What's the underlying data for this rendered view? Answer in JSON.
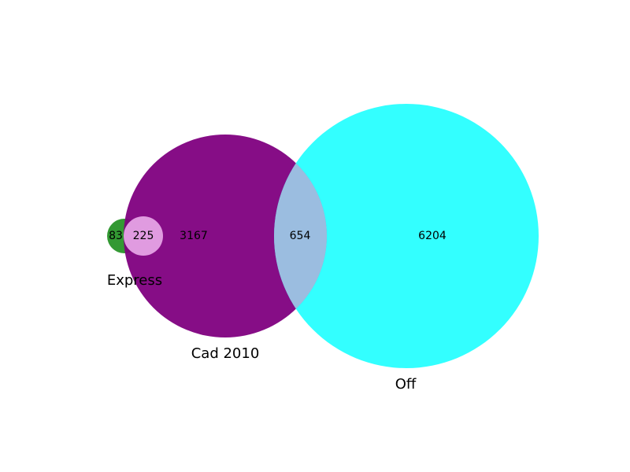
{
  "diagram": {
    "type": "venn",
    "sets": [
      {
        "id": "express",
        "label": "Express",
        "color": "#008000"
      },
      {
        "id": "cad",
        "label": "Cad 2010",
        "color": "#800080"
      },
      {
        "id": "off",
        "label": "Off",
        "color": "#00ffff"
      }
    ],
    "regions": [
      {
        "id": "express-only",
        "sets": [
          "Express"
        ],
        "value": "83"
      },
      {
        "id": "express-cad",
        "sets": [
          "Express",
          "Cad 2010"
        ],
        "value": "225"
      },
      {
        "id": "cad-only",
        "sets": [
          "Cad 2010"
        ],
        "value": "3167"
      },
      {
        "id": "cad-off",
        "sets": [
          "Cad 2010",
          "Off"
        ],
        "value": "654"
      },
      {
        "id": "off-only",
        "sets": [
          "Off"
        ],
        "value": "6204"
      }
    ],
    "colors": {
      "express_fill": "#008000",
      "cad_fill": "#800080",
      "off_fill": "#00ffff",
      "express_cad_overlap": "#e09be0",
      "cad_off_overlap": "#9bbde0"
    }
  }
}
